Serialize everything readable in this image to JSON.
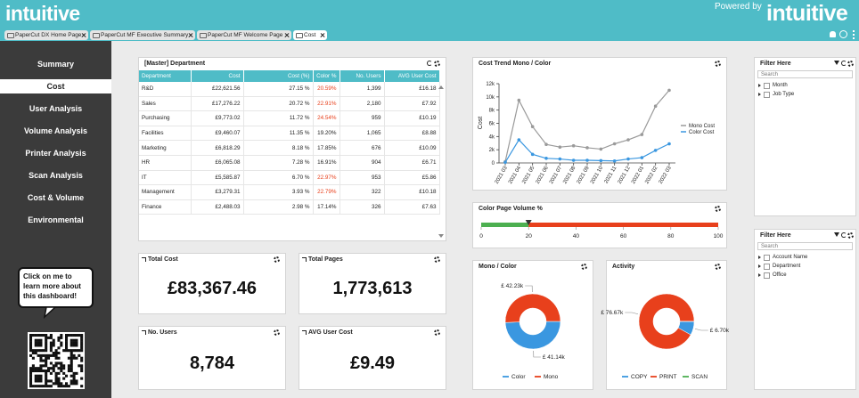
{
  "header": {
    "logo": "intuitive",
    "powered_by": "Powered by",
    "powered_logo": "intuitive"
  },
  "tabs": [
    "PaperCut DX Home Page",
    "PaperCut MF Executive Summary",
    "PaperCut MF Welcome Page",
    "Cost"
  ],
  "active_tab": 3,
  "menu": [
    "Summary",
    "Cost",
    "User Analysis",
    "Volume Analysis",
    "Printer Analysis",
    "Scan Analysis",
    "Cost & Volume",
    "Environmental"
  ],
  "active_menu": 1,
  "help_bubble": "Click on me to learn more about this dashboard!",
  "table": {
    "title": "[Master] Department",
    "columns": [
      "Department",
      "Cost",
      "Cost (%)",
      "Color %",
      "No. Users",
      "AVG User Cost"
    ],
    "rows": [
      [
        "R&D",
        "£22,621.56",
        "27.15 %",
        "20.59%",
        "1,399",
        "£16.18"
      ],
      [
        "Sales",
        "£17,276.22",
        "20.72 %",
        "22.91%",
        "2,180",
        "£7.92"
      ],
      [
        "Purchasing",
        "£9,773.02",
        "11.72 %",
        "24.54%",
        "959",
        "£10.19"
      ],
      [
        "Facilities",
        "£9,460.07",
        "11.35 %",
        "19.20%",
        "1,065",
        "£8.88"
      ],
      [
        "Marketing",
        "£6,818.29",
        "8.18 %",
        "17.85%",
        "676",
        "£10.09"
      ],
      [
        "HR",
        "£6,065.08",
        "7.28 %",
        "16.91%",
        "904",
        "£6.71"
      ],
      [
        "IT",
        "£5,585.87",
        "6.70 %",
        "22.97%",
        "953",
        "£5.86"
      ],
      [
        "Management",
        "£3,279.31",
        "3.93 %",
        "22.79%",
        "322",
        "£10.18"
      ],
      [
        "Finance",
        "£2,488.03",
        "2.98 %",
        "17.14%",
        "326",
        "£7.63"
      ]
    ],
    "highlight_color": "#e8401c",
    "highlighted": [
      [
        0,
        3
      ],
      [
        1,
        3
      ],
      [
        2,
        3
      ],
      [
        6,
        3
      ],
      [
        7,
        3
      ]
    ]
  },
  "kpis": [
    {
      "title": "Total Cost",
      "value": "£83,367.46"
    },
    {
      "title": "Total Pages",
      "value": "1,773,613"
    },
    {
      "title": "No. Users",
      "value": "8,784"
    },
    {
      "title": "AVG User Cost",
      "value": "£9.49"
    }
  ],
  "filters": [
    {
      "title": "Filter Here",
      "search": "Search",
      "items": [
        "Month",
        "Job Type"
      ]
    },
    {
      "title": "Filter Here",
      "search": "Search",
      "items": [
        "Account Name",
        "Department",
        "Office"
      ]
    }
  ],
  "chart_data": [
    {
      "type": "line",
      "title": "Cost Trend Mono / Color",
      "y_label": "Cost",
      "categories": [
        "2021 03",
        "2021 04",
        "2021 05",
        "2021 06",
        "2021 07",
        "2021 08",
        "2021 09",
        "2021 10",
        "2021 11",
        "2021 12",
        "2022 01",
        "2022 02",
        "2022 03"
      ],
      "series": [
        {
          "name": "Mono Cost",
          "color": "#9a9a9a",
          "values": [
            200,
            9500,
            5500,
            2800,
            2400,
            2600,
            2300,
            2100,
            2900,
            3500,
            4300,
            8600,
            11000
          ]
        },
        {
          "name": "Color Cost",
          "color": "#3a97e0",
          "values": [
            100,
            3500,
            1300,
            700,
            600,
            400,
            400,
            350,
            300,
            600,
            800,
            1900,
            2900
          ]
        }
      ],
      "ylim": [
        0,
        12000
      ],
      "yticks": [
        0,
        {
          "value": 2000,
          "label": "2k"
        },
        {
          "value": 4000,
          "label": "4k"
        },
        {
          "value": 6000,
          "label": "6k"
        },
        {
          "value": 8000,
          "label": "8k"
        },
        {
          "value": 10000,
          "label": "10k"
        },
        {
          "value": 12000,
          "label": "12k"
        }
      ]
    },
    {
      "type": "gauge",
      "title": "Color Page Volume %",
      "value": 20,
      "xlim": [
        0,
        100
      ],
      "xticks": [
        0,
        20,
        40,
        60,
        80,
        100
      ],
      "colors": [
        "#4caf50",
        "#e8401c"
      ]
    },
    {
      "type": "pie",
      "title": "Mono / Color",
      "categories": [
        "Color",
        "Mono"
      ],
      "values": [
        41140,
        42230
      ],
      "value_labels": [
        "£ 41.14k",
        "£ 42.23k"
      ],
      "colors": [
        "#3a97e0",
        "#e8401c"
      ]
    },
    {
      "type": "pie",
      "title": "Activity",
      "categories": [
        "COPY",
        "PRINT",
        "SCAN"
      ],
      "values": [
        6700,
        76670,
        0
      ],
      "value_labels": [
        "£ 6.70k",
        "£ 76.67k",
        null
      ],
      "colors": [
        "#3a97e0",
        "#e8401c",
        "#4caf50"
      ]
    }
  ]
}
